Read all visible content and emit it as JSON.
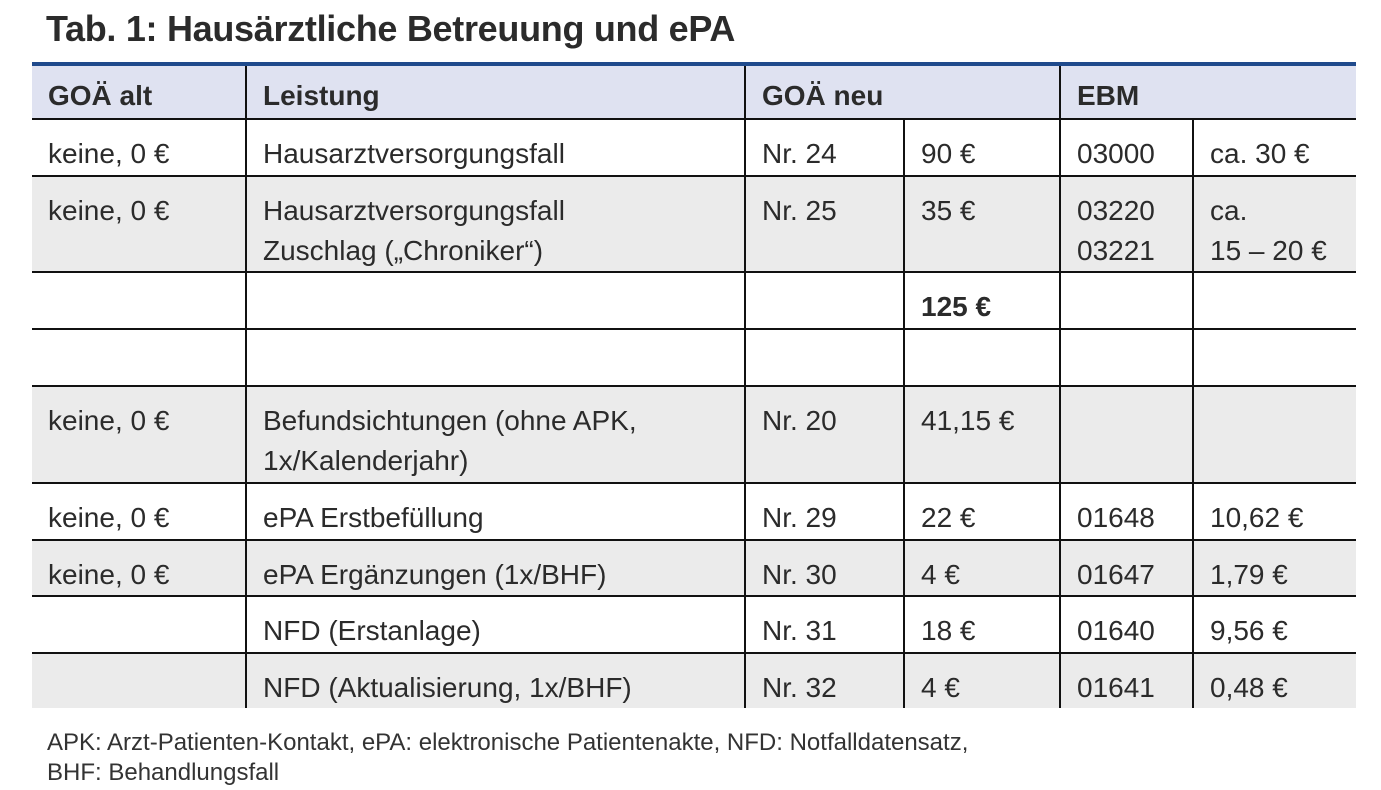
{
  "title": "Tab. 1: Hausärztliche Betreuung und ePA",
  "headers": [
    "GOÄ alt",
    "Leistung",
    "GOÄ neu",
    "EBM"
  ],
  "rows": [
    {
      "gray": false,
      "cells": [
        "keine, 0 €",
        "Hausarztversorgungsfall",
        "Nr. 24",
        "90 €",
        "03000",
        "ca. 30 €"
      ]
    },
    {
      "gray": true,
      "cells": [
        "keine, 0 €",
        "Hausarztversorgungsfall\nZuschlag („Chroniker“)",
        "Nr. 25",
        "35 €",
        "03220\n03221",
        "ca.\n15 – 20 €"
      ]
    },
    {
      "gray": false,
      "cells": [
        "",
        "",
        "",
        "125 €",
        "",
        ""
      ]
    },
    {
      "gray": false,
      "cells": [
        "",
        "",
        "",
        "",
        "",
        ""
      ]
    },
    {
      "gray": true,
      "cells": [
        "keine, 0 €",
        "Befundsichtungen (ohne APK,\n1x/Kalenderjahr)",
        "Nr. 20",
        "41,15 €",
        "",
        ""
      ]
    },
    {
      "gray": false,
      "cells": [
        "keine, 0 €",
        "ePA Erstbefüllung",
        "Nr. 29",
        "22 €",
        "01648",
        "10,62 €"
      ]
    },
    {
      "gray": true,
      "cells": [
        "keine, 0 €",
        "ePA Ergänzungen (1x/BHF)",
        "Nr. 30",
        "4 €",
        "01647",
        "1,79 €"
      ]
    },
    {
      "gray": false,
      "cells": [
        "",
        "NFD (Erstanlage)",
        "Nr. 31",
        "18 €",
        "01640",
        "9,56 €"
      ]
    },
    {
      "gray": true,
      "cells": [
        "",
        "NFD (Aktualisierung, 1x/BHF)",
        "Nr. 32",
        "4 €",
        "01641",
        "0,48 €"
      ]
    }
  ],
  "footnote": "APK: Arzt-Patienten-Kontakt, ePA: elektronische Patientenakte, NFD: Notfalldatensatz,\nBHF: Behandlungsfall"
}
